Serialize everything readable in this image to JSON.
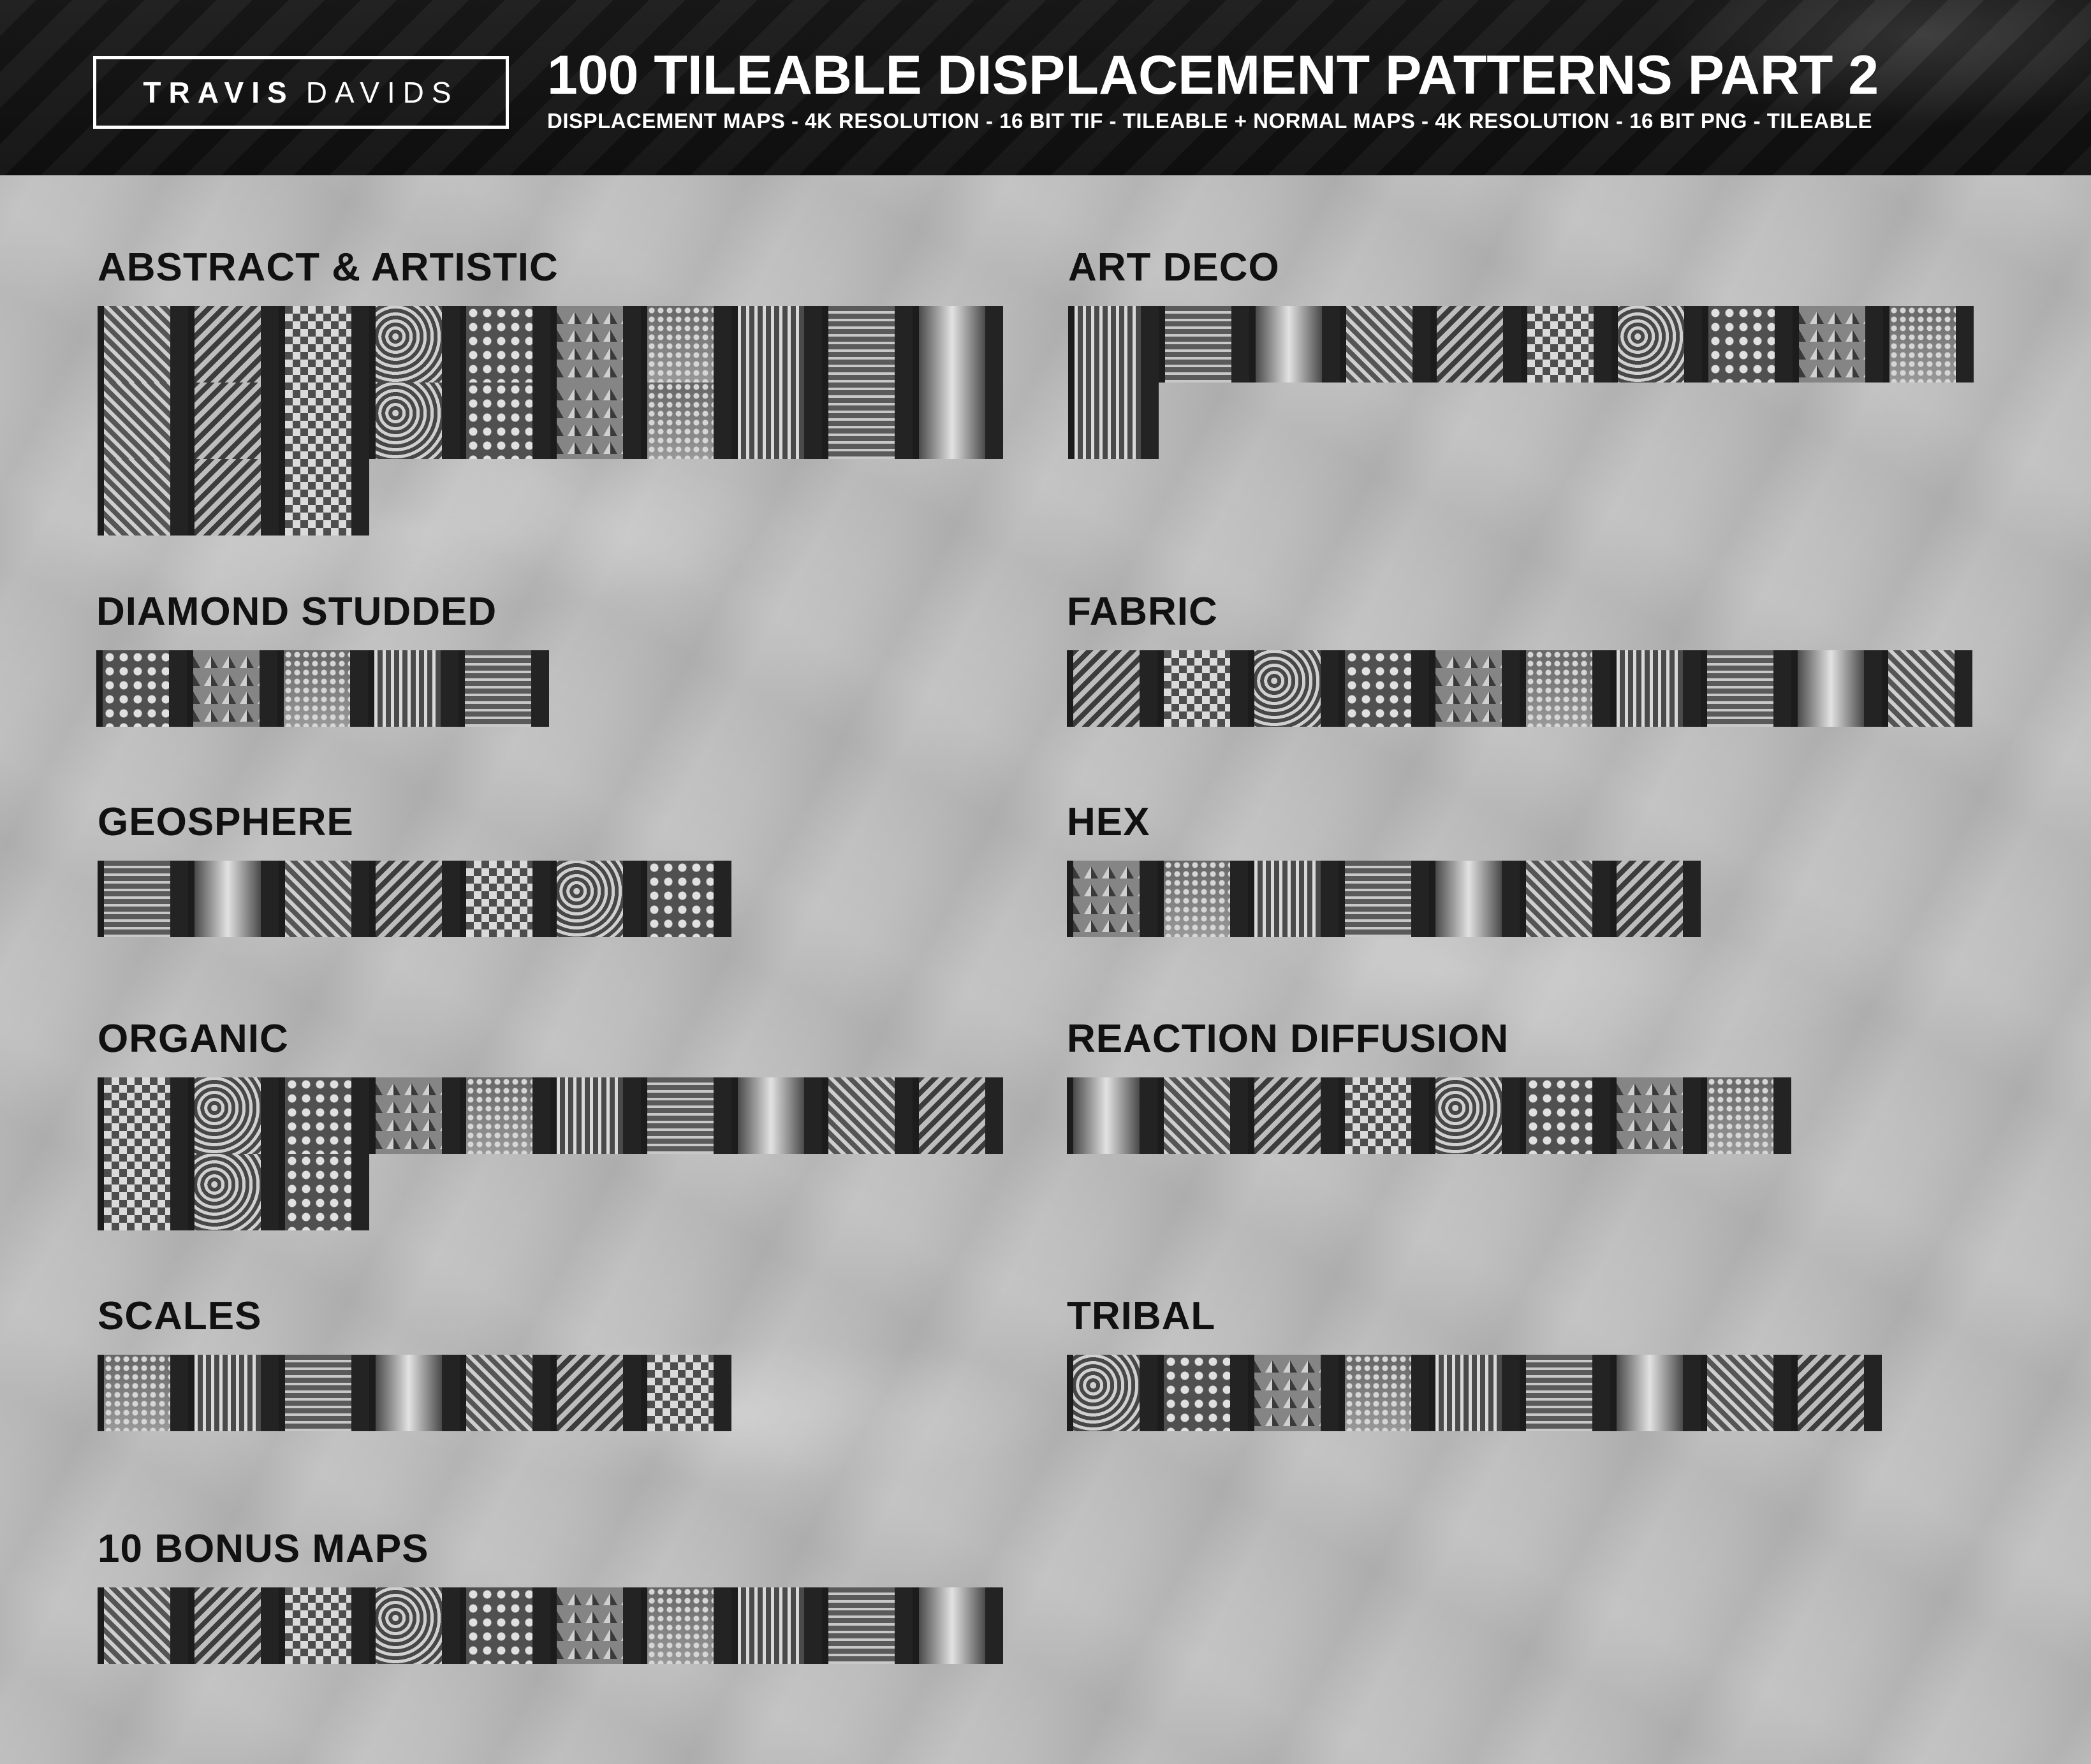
{
  "header": {
    "brand_first": "TRAVIS",
    "brand_last": "DAVIDS",
    "title": "100 TILEABLE DISPLACEMENT PATTERNS PART 2",
    "subtitle": "DISPLACEMENT MAPS - 4K RESOLUTION - 16 BIT TIF - TILEABLE + NORMAL MAPS - 4K RESOLUTION - 16 BIT PNG - TILEABLE"
  },
  "colors": {
    "header_background": "#161616",
    "page_background": "#bdbdbd",
    "heading_text": "#111111",
    "header_text": "#ffffff"
  },
  "sections": [
    {
      "key": "abstract",
      "title": "ABSTRACT & ARTISTIC",
      "tile_count": 23
    },
    {
      "key": "art_deco",
      "title": "ART DECO",
      "tile_count": 11
    },
    {
      "key": "diamond",
      "title": "DIAMOND STUDDED",
      "tile_count": 5
    },
    {
      "key": "fabric",
      "title": "FABRIC",
      "tile_count": 10
    },
    {
      "key": "geosphere",
      "title": "GEOSPHERE",
      "tile_count": 7
    },
    {
      "key": "hex",
      "title": "HEX",
      "tile_count": 7
    },
    {
      "key": "organic",
      "title": "ORGANIC",
      "tile_count": 13
    },
    {
      "key": "reaction",
      "title": "REACTION DIFFUSION",
      "tile_count": 8
    },
    {
      "key": "scales",
      "title": "SCALES",
      "tile_count": 7
    },
    {
      "key": "tribal",
      "title": "TRIBAL",
      "tile_count": 9
    },
    {
      "key": "bonus",
      "title": "10 BONUS MAPS",
      "tile_count": 10
    }
  ]
}
